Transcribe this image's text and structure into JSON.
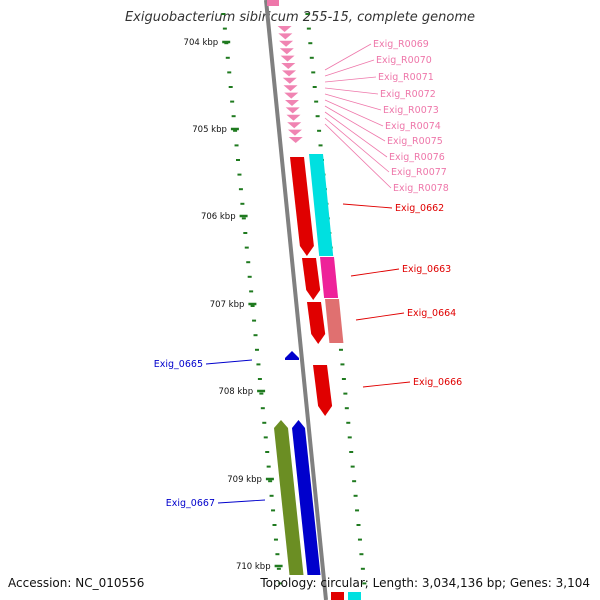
{
  "title": "Exiguobacterium sibiricum 255-15, complete genome",
  "footer": {
    "accession": "Accession: NC_010556",
    "summary": "Topology: circular; Length: 3,034,136 bp; Genes: 3,104"
  },
  "colors": {
    "ruler": "#1f7a1f",
    "backbone": "#808080",
    "rrna_label": "#ee77aa",
    "red": "#e00000",
    "cyan": "#00e0e0",
    "magenta": "#ee2299",
    "salmon": "#e07070",
    "blue": "#0000cc",
    "olive": "#6b8e23"
  },
  "kbp_ticks": [
    "704 kbp",
    "705 kbp",
    "706 kbp",
    "707 kbp",
    "708 kbp",
    "709 kbp",
    "710 kbp"
  ],
  "rna_labels": [
    "Exig_R0069",
    "Exig_R0070",
    "Exig_R0071",
    "Exig_R0072",
    "Exig_R0073",
    "Exig_R0074",
    "Exig_R0075",
    "Exig_R0076",
    "Exig_R0077",
    "Exig_R0078"
  ],
  "gene_labels_right": [
    "Exig_0662",
    "Exig_0663",
    "Exig_0664",
    "Exig_0666"
  ],
  "gene_labels_left": [
    "Exig_0665",
    "Exig_0667"
  ]
}
